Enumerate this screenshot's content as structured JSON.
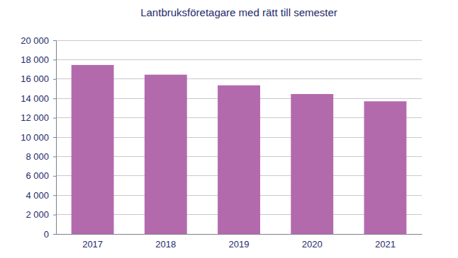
{
  "chart_data": {
    "type": "bar",
    "title": "Lantbruksföretagare med rätt till semester",
    "categories": [
      "2017",
      "2018",
      "2019",
      "2020",
      "2021"
    ],
    "values": [
      17450,
      16450,
      15350,
      14450,
      13700
    ],
    "color": "#b36aad",
    "ylim": [
      0,
      20000
    ],
    "yticks": [
      0,
      {
        "value": 2000,
        "label": "2 000"
      },
      {
        "value": 4000,
        "label": "4 000"
      },
      {
        "value": 6000,
        "label": "6 000"
      },
      {
        "value": 8000,
        "label": "8 000"
      },
      {
        "value": 10000,
        "label": "10 000"
      },
      {
        "value": 12000,
        "label": "12 000"
      },
      {
        "value": 14000,
        "label": "14 000"
      },
      {
        "value": 16000,
        "label": "16 000"
      },
      {
        "value": 18000,
        "label": "18 000"
      },
      {
        "value": 20000,
        "label": "20 000"
      }
    ],
    "grid": true
  }
}
